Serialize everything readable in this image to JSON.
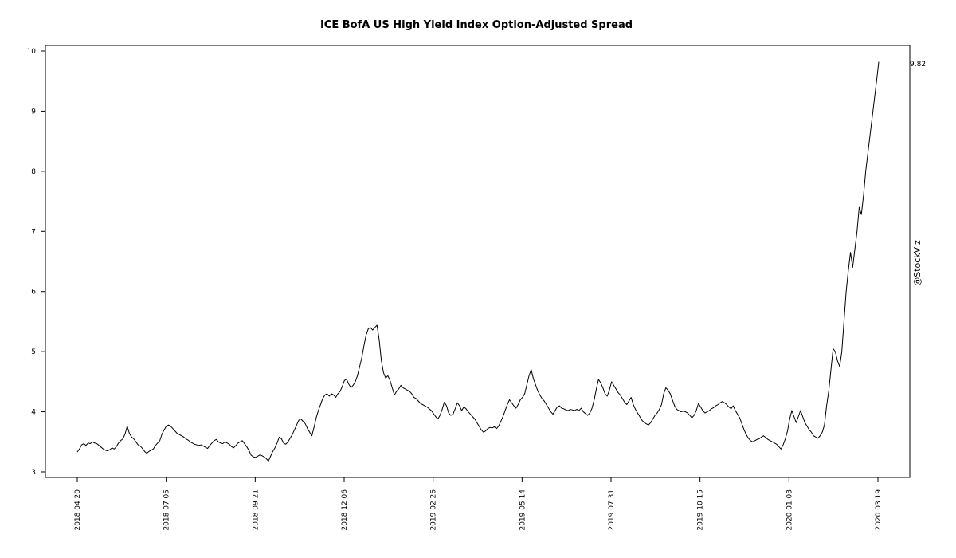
{
  "chart_data": {
    "type": "line",
    "title": "ICE BofA US High Yield Index Option-Adjusted Spread",
    "xlabel": "",
    "ylabel": "",
    "ylim": [
      3,
      10
    ],
    "y_ticks": [
      3,
      4,
      5,
      6,
      7,
      8,
      9,
      10
    ],
    "x_tick_labels": [
      "2018 04 20",
      "2018 07 05",
      "2018 09 21",
      "2018 12 06",
      "2019 02 26",
      "2019 05 14",
      "2019 07 31",
      "2019 10 15",
      "2020 01 03",
      "2020 03 19"
    ],
    "last_value_label": "9.82",
    "watermark": "@StockViz",
    "grid": false,
    "legend": "none",
    "line_color": "#000000",
    "series": [
      {
        "values": [
          3.33,
          3.38,
          3.45,
          3.47,
          3.44,
          3.48,
          3.47,
          3.5,
          3.48,
          3.47,
          3.44,
          3.41,
          3.38,
          3.36,
          3.35,
          3.37,
          3.4,
          3.38,
          3.42,
          3.48,
          3.52,
          3.55,
          3.63,
          3.76,
          3.64,
          3.58,
          3.55,
          3.5,
          3.45,
          3.43,
          3.39,
          3.34,
          3.31,
          3.34,
          3.36,
          3.38,
          3.44,
          3.48,
          3.52,
          3.63,
          3.7,
          3.76,
          3.78,
          3.76,
          3.72,
          3.68,
          3.64,
          3.62,
          3.6,
          3.58,
          3.55,
          3.53,
          3.5,
          3.48,
          3.46,
          3.45,
          3.44,
          3.45,
          3.43,
          3.41,
          3.39,
          3.44,
          3.48,
          3.52,
          3.54,
          3.5,
          3.48,
          3.47,
          3.5,
          3.48,
          3.46,
          3.42,
          3.4,
          3.44,
          3.48,
          3.5,
          3.52,
          3.47,
          3.42,
          3.36,
          3.28,
          3.25,
          3.24,
          3.26,
          3.28,
          3.27,
          3.25,
          3.22,
          3.18,
          3.26,
          3.34,
          3.4,
          3.48,
          3.58,
          3.55,
          3.48,
          3.46,
          3.5,
          3.56,
          3.62,
          3.7,
          3.78,
          3.86,
          3.88,
          3.84,
          3.8,
          3.72,
          3.66,
          3.6,
          3.74,
          3.9,
          4.02,
          4.12,
          4.22,
          4.28,
          4.3,
          4.26,
          4.3,
          4.28,
          4.24,
          4.3,
          4.34,
          4.42,
          4.52,
          4.54,
          4.46,
          4.4,
          4.44,
          4.5,
          4.6,
          4.75,
          4.9,
          5.1,
          5.28,
          5.38,
          5.4,
          5.36,
          5.4,
          5.44,
          5.2,
          4.85,
          4.65,
          4.56,
          4.6,
          4.52,
          4.4,
          4.28,
          4.34,
          4.38,
          4.44,
          4.4,
          4.38,
          4.36,
          4.34,
          4.3,
          4.24,
          4.22,
          4.18,
          4.14,
          4.12,
          4.1,
          4.08,
          4.05,
          4.02,
          3.97,
          3.92,
          3.88,
          3.94,
          4.04,
          4.16,
          4.1,
          3.98,
          3.94,
          3.96,
          4.05,
          4.15,
          4.1,
          4.02,
          4.08,
          4.05,
          4.0,
          3.96,
          3.92,
          3.88,
          3.82,
          3.76,
          3.7,
          3.66,
          3.68,
          3.72,
          3.74,
          3.73,
          3.75,
          3.72,
          3.76,
          3.84,
          3.92,
          4.02,
          4.12,
          4.2,
          4.15,
          4.1,
          4.06,
          4.12,
          4.2,
          4.24,
          4.3,
          4.45,
          4.6,
          4.7,
          4.55,
          4.45,
          4.35,
          4.28,
          4.22,
          4.18,
          4.12,
          4.06,
          4.0,
          3.96,
          4.02,
          4.08,
          4.1,
          4.06,
          4.05,
          4.03,
          4.02,
          4.04,
          4.03,
          4.02,
          4.04,
          4.02,
          4.06,
          4.0,
          3.97,
          3.94,
          3.98,
          4.06,
          4.2,
          4.38,
          4.54,
          4.48,
          4.4,
          4.3,
          4.26,
          4.36,
          4.5,
          4.44,
          4.38,
          4.32,
          4.28,
          4.22,
          4.16,
          4.12,
          4.18,
          4.24,
          4.12,
          4.04,
          3.98,
          3.92,
          3.86,
          3.82,
          3.8,
          3.78,
          3.82,
          3.88,
          3.94,
          3.98,
          4.04,
          4.12,
          4.3,
          4.4,
          4.36,
          4.3,
          4.2,
          4.1,
          4.04,
          4.02,
          4.0,
          4.01,
          4.0,
          3.98,
          3.94,
          3.9,
          3.94,
          4.02,
          4.14,
          4.08,
          4.02,
          3.98,
          4.0,
          4.02,
          4.05,
          4.07,
          4.1,
          4.12,
          4.15,
          4.17,
          4.15,
          4.12,
          4.08,
          4.05,
          4.1,
          4.02,
          3.96,
          3.9,
          3.8,
          3.7,
          3.62,
          3.56,
          3.52,
          3.5,
          3.52,
          3.54,
          3.55,
          3.58,
          3.6,
          3.57,
          3.54,
          3.52,
          3.5,
          3.48,
          3.46,
          3.42,
          3.38,
          3.45,
          3.55,
          3.68,
          3.88,
          4.02,
          3.92,
          3.82,
          3.92,
          4.02,
          3.92,
          3.82,
          3.76,
          3.7,
          3.66,
          3.6,
          3.58,
          3.56,
          3.6,
          3.66,
          3.78,
          4.1,
          4.35,
          4.7,
          5.05,
          5.0,
          4.85,
          4.75,
          5.0,
          5.5,
          6.0,
          6.35,
          6.65,
          6.4,
          6.7,
          7.0,
          7.4,
          7.28,
          7.6,
          8.0,
          8.3,
          8.6,
          8.9,
          9.2,
          9.5,
          9.82
        ]
      }
    ]
  }
}
